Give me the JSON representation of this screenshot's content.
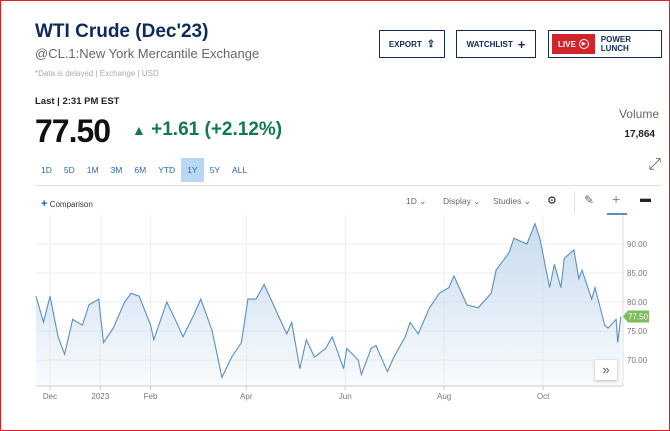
{
  "header": {
    "title": "WTI Crude (Dec'23)",
    "subtitle": "@CL.1:New York Mercantile Exchange",
    "delay_note": "*Data is delayed | Exchange | USD"
  },
  "buttons": {
    "export": "EXPORT",
    "watchlist": "WATCHLIST",
    "live": "LIVE",
    "power_lunch": "POWER LUNCH"
  },
  "quote": {
    "last_label": "Last | 2:31 PM EST",
    "price": "77.50",
    "change": "+1.61 (+2.12%)",
    "direction": "up",
    "volume_label": "Volume",
    "volume": "17,864"
  },
  "ranges": [
    "1D",
    "5D",
    "1M",
    "3M",
    "6M",
    "YTD",
    "1Y",
    "5Y",
    "ALL"
  ],
  "active_range": "1Y",
  "toolbar": {
    "comparison": "Comparison",
    "interval": "1D",
    "display": "Display",
    "studies": "Studies"
  },
  "colors": {
    "line": "#5b8fc0",
    "fill": "#c5d9ee",
    "up": "#0f7a4e",
    "price_tag": "#7dbb5e",
    "accent": "#0c2a5a",
    "live": "#d2242a"
  },
  "chart_data": {
    "type": "area",
    "ylim": [
      66,
      95
    ],
    "yticks": [
      70,
      75,
      80,
      85,
      90
    ],
    "ytick_labels": [
      "70.00",
      "75.00",
      "80.00",
      "85.00",
      "90.00"
    ],
    "xticks": [
      {
        "date": "2022-12-01",
        "label": "Dec"
      },
      {
        "date": "2023-01-01",
        "label": "2023"
      },
      {
        "date": "2023-02-01",
        "label": "Feb"
      },
      {
        "date": "2023-04-01",
        "label": "Apr"
      },
      {
        "date": "2023-06-01",
        "label": "Jun"
      },
      {
        "date": "2023-08-01",
        "label": "Aug"
      },
      {
        "date": "2023-10-01",
        "label": "Oct"
      }
    ],
    "last_value_label": "77.50",
    "grid": true,
    "points": [
      [
        "2022-11-22",
        81
      ],
      [
        "2022-11-27",
        76.5
      ],
      [
        "2022-12-01",
        81
      ],
      [
        "2022-12-06",
        74
      ],
      [
        "2022-12-10",
        71
      ],
      [
        "2022-12-15",
        77
      ],
      [
        "2022-12-21",
        76
      ],
      [
        "2022-12-25",
        79.5
      ],
      [
        "2022-12-31",
        80.5
      ],
      [
        "2023-01-03",
        73
      ],
      [
        "2023-01-09",
        75.5
      ],
      [
        "2023-01-16",
        80
      ],
      [
        "2023-01-20",
        81.5
      ],
      [
        "2023-01-25",
        81
      ],
      [
        "2023-02-01",
        76
      ],
      [
        "2023-02-03",
        73.5
      ],
      [
        "2023-02-11",
        80
      ],
      [
        "2023-02-17",
        76.5
      ],
      [
        "2023-02-21",
        74
      ],
      [
        "2023-02-28",
        78
      ],
      [
        "2023-03-04",
        80.5
      ],
      [
        "2023-03-11",
        75
      ],
      [
        "2023-03-17",
        67
      ],
      [
        "2023-03-23",
        70.5
      ],
      [
        "2023-03-29",
        73
      ],
      [
        "2023-04-02",
        80.5
      ],
      [
        "2023-04-07",
        80.5
      ],
      [
        "2023-04-12",
        83
      ],
      [
        "2023-04-17",
        80
      ],
      [
        "2023-04-21",
        77.5
      ],
      [
        "2023-04-26",
        74.5
      ],
      [
        "2023-04-29",
        76.5
      ],
      [
        "2023-05-04",
        68.5
      ],
      [
        "2023-05-08",
        73.5
      ],
      [
        "2023-05-13",
        70.5
      ],
      [
        "2023-05-20",
        72
      ],
      [
        "2023-05-24",
        74
      ],
      [
        "2023-05-31",
        68.5
      ],
      [
        "2023-06-02",
        72
      ],
      [
        "2023-06-09",
        70
      ],
      [
        "2023-06-11",
        67.5
      ],
      [
        "2023-06-17",
        72
      ],
      [
        "2023-06-20",
        72.5
      ],
      [
        "2023-06-27",
        68
      ],
      [
        "2023-07-01",
        70.5
      ],
      [
        "2023-07-08",
        74
      ],
      [
        "2023-07-11",
        76.5
      ],
      [
        "2023-07-16",
        74.5
      ],
      [
        "2023-07-23",
        79
      ],
      [
        "2023-07-29",
        81.5
      ],
      [
        "2023-08-04",
        82.5
      ],
      [
        "2023-08-07",
        84.5
      ],
      [
        "2023-08-15",
        79.5
      ],
      [
        "2023-08-22",
        79
      ],
      [
        "2023-08-30",
        81.5
      ],
      [
        "2023-09-02",
        85.5
      ],
      [
        "2023-09-10",
        88.5
      ],
      [
        "2023-09-13",
        91
      ],
      [
        "2023-09-21",
        90
      ],
      [
        "2023-09-26",
        93.5
      ],
      [
        "2023-09-29",
        91
      ],
      [
        "2023-10-05",
        82.5
      ],
      [
        "2023-10-08",
        86.5
      ],
      [
        "2023-10-12",
        82.5
      ],
      [
        "2023-10-14",
        87.5
      ],
      [
        "2023-10-20",
        89
      ],
      [
        "2023-10-23",
        84
      ],
      [
        "2023-10-25",
        85.5
      ],
      [
        "2023-10-31",
        80.5
      ],
      [
        "2023-11-02",
        82.5
      ],
      [
        "2023-11-08",
        76
      ],
      [
        "2023-11-10",
        75.5
      ],
      [
        "2023-11-15",
        77
      ],
      [
        "2023-11-16",
        73
      ],
      [
        "2023-11-18",
        77.5
      ]
    ]
  }
}
